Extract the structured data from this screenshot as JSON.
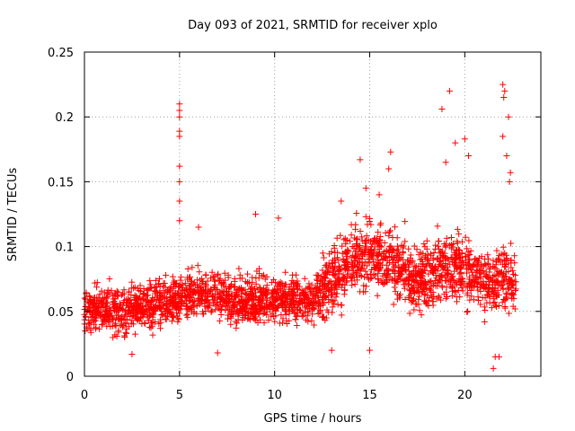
{
  "chart_data": {
    "type": "scatter",
    "title": "Day 093 of 2021, SRMTID for receiver xplo",
    "xlabel": "GPS time / hours",
    "ylabel": "SRMTID / TECUs",
    "xlim": [
      0,
      24
    ],
    "ylim": [
      0,
      0.25
    ],
    "x_ticks": [
      0,
      5,
      10,
      15,
      20
    ],
    "x_tick_labels": [
      "0",
      "5",
      "10",
      "15",
      "20"
    ],
    "y_ticks": [
      0,
      0.05,
      0.1,
      0.15,
      0.2,
      0.25
    ],
    "y_tick_labels": [
      "0",
      "0.05",
      "0.1",
      "0.15",
      "0.2",
      "0.25"
    ],
    "grid": true,
    "marker": "+",
    "color": "#ff0000",
    "series": [
      {
        "name": "SRMTID",
        "x_range_hours": [
          0,
          22.7
        ],
        "profile": [
          {
            "x": 0,
            "y": 0.052
          },
          {
            "x": 2,
            "y": 0.05
          },
          {
            "x": 4,
            "y": 0.056
          },
          {
            "x": 6,
            "y": 0.065
          },
          {
            "x": 8,
            "y": 0.058
          },
          {
            "x": 10,
            "y": 0.06
          },
          {
            "x": 12,
            "y": 0.058
          },
          {
            "x": 13,
            "y": 0.075
          },
          {
            "x": 14,
            "y": 0.088
          },
          {
            "x": 15,
            "y": 0.095
          },
          {
            "x": 16,
            "y": 0.09
          },
          {
            "x": 17,
            "y": 0.078
          },
          {
            "x": 18,
            "y": 0.075
          },
          {
            "x": 19,
            "y": 0.085
          },
          {
            "x": 20,
            "y": 0.082
          },
          {
            "x": 21,
            "y": 0.07
          },
          {
            "x": 22,
            "y": 0.075
          },
          {
            "x": 22.7,
            "y": 0.072
          }
        ],
        "notable_points": [
          {
            "x": 5.0,
            "y": 0.21
          },
          {
            "x": 5.0,
            "y": 0.205
          },
          {
            "x": 5.0,
            "y": 0.2
          },
          {
            "x": 5.0,
            "y": 0.189
          },
          {
            "x": 5.0,
            "y": 0.185
          },
          {
            "x": 5.0,
            "y": 0.162
          },
          {
            "x": 5.0,
            "y": 0.15
          },
          {
            "x": 5.0,
            "y": 0.135
          },
          {
            "x": 5.0,
            "y": 0.12
          },
          {
            "x": 19.2,
            "y": 0.22
          },
          {
            "x": 18.8,
            "y": 0.206
          },
          {
            "x": 19.5,
            "y": 0.18
          },
          {
            "x": 19.0,
            "y": 0.165
          },
          {
            "x": 20.0,
            "y": 0.183
          },
          {
            "x": 20.2,
            "y": 0.17
          },
          {
            "x": 22.0,
            "y": 0.225
          },
          {
            "x": 22.1,
            "y": 0.22
          },
          {
            "x": 22.05,
            "y": 0.215
          },
          {
            "x": 22.3,
            "y": 0.2
          },
          {
            "x": 22.0,
            "y": 0.185
          },
          {
            "x": 22.2,
            "y": 0.17
          },
          {
            "x": 22.4,
            "y": 0.157
          },
          {
            "x": 22.35,
            "y": 0.15
          },
          {
            "x": 14.5,
            "y": 0.167
          },
          {
            "x": 16.1,
            "y": 0.173
          },
          {
            "x": 16.0,
            "y": 0.16
          },
          {
            "x": 15.5,
            "y": 0.14
          },
          {
            "x": 14.8,
            "y": 0.145
          },
          {
            "x": 21.5,
            "y": 0.006
          },
          {
            "x": 21.6,
            "y": 0.015
          },
          {
            "x": 21.8,
            "y": 0.015
          },
          {
            "x": 2.5,
            "y": 0.017
          },
          {
            "x": 7.0,
            "y": 0.018
          },
          {
            "x": 13.0,
            "y": 0.02
          },
          {
            "x": 15.0,
            "y": 0.02
          },
          {
            "x": 6.0,
            "y": 0.115
          },
          {
            "x": 9.0,
            "y": 0.125
          },
          {
            "x": 10.2,
            "y": 0.122
          },
          {
            "x": 13.5,
            "y": 0.135
          }
        ]
      }
    ]
  }
}
